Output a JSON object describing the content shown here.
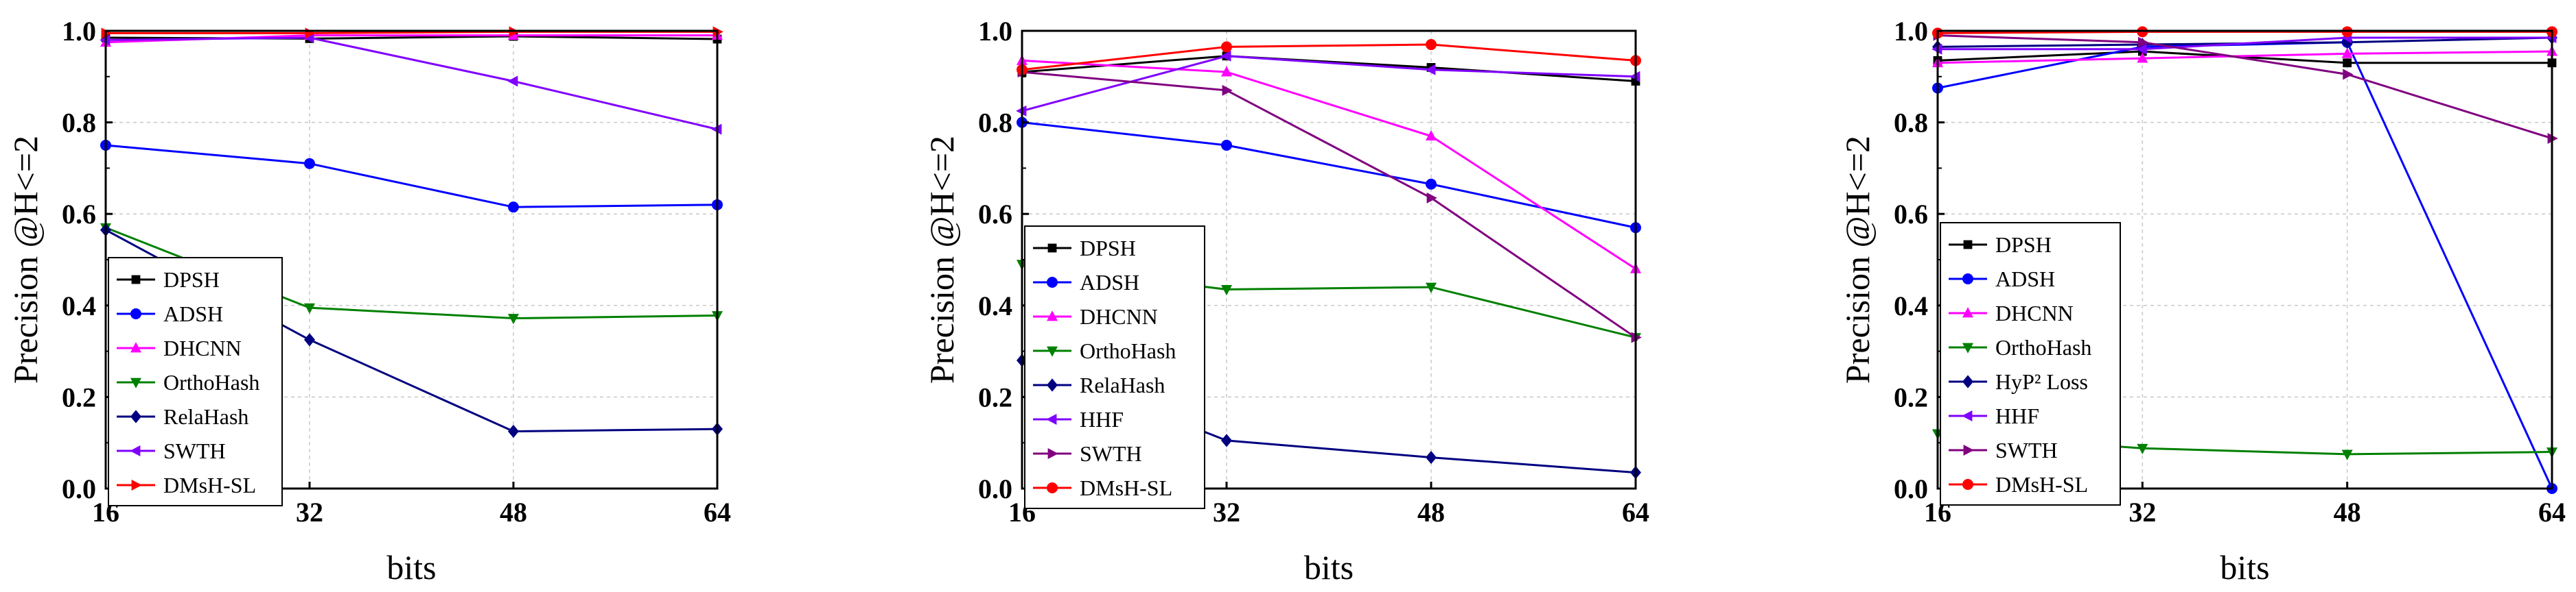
{
  "chart_data": [
    {
      "type": "line",
      "title": "",
      "xlabel": "bits",
      "ylabel": "Precision @H<=2",
      "x": [
        16,
        32,
        48,
        64
      ],
      "xticks": [
        "16",
        "32",
        "48",
        "64"
      ],
      "yticks": [
        "0.0",
        "0.2",
        "0.4",
        "0.6",
        "0.8",
        "1.0"
      ],
      "xlim": [
        16,
        64
      ],
      "ylim": [
        0,
        1
      ],
      "grid": true,
      "legend": "bottom-left",
      "series": [
        {
          "name": "DPSH",
          "color": "#000000",
          "marker": "square",
          "values": [
            0.985,
            0.983,
            0.988,
            0.982
          ]
        },
        {
          "name": "ADSH",
          "color": "#0000ff",
          "marker": "circle",
          "values": [
            0.75,
            0.71,
            0.615,
            0.62
          ]
        },
        {
          "name": "DHCNN",
          "color": "#ff00ff",
          "marker": "triangle-up",
          "values": [
            0.975,
            0.99,
            0.99,
            0.99
          ]
        },
        {
          "name": "OrthoHash",
          "color": "#008000",
          "marker": "triangle-down",
          "values": [
            0.57,
            0.395,
            0.372,
            0.378
          ]
        },
        {
          "name": "RelaHash",
          "color": "#000080",
          "marker": "diamond",
          "values": [
            0.565,
            0.325,
            0.125,
            0.13
          ]
        },
        {
          "name": "SWTH",
          "color": "#8000ff",
          "marker": "triangle-left",
          "values": [
            0.98,
            0.985,
            0.89,
            0.785
          ]
        },
        {
          "name": "DMsH-SL",
          "color": "#ff0000",
          "marker": "triangle-right",
          "values": [
            0.995,
            0.995,
            0.998,
            0.998
          ]
        }
      ]
    },
    {
      "type": "line",
      "title": "",
      "xlabel": "bits",
      "ylabel": "Precision @H<=2",
      "x": [
        16,
        32,
        48,
        64
      ],
      "xticks": [
        "16",
        "32",
        "48",
        "64"
      ],
      "yticks": [
        "0.0",
        "0.2",
        "0.4",
        "0.6",
        "0.8",
        "1.0"
      ],
      "xlim": [
        16,
        64
      ],
      "ylim": [
        0,
        1
      ],
      "grid": true,
      "legend": "bottom-left",
      "series": [
        {
          "name": "DPSH",
          "color": "#000000",
          "marker": "square",
          "values": [
            0.91,
            0.945,
            0.92,
            0.89
          ]
        },
        {
          "name": "ADSH",
          "color": "#0000ff",
          "marker": "circle",
          "values": [
            0.8,
            0.75,
            0.665,
            0.57
          ]
        },
        {
          "name": "DHCNN",
          "color": "#ff00ff",
          "marker": "triangle-up",
          "values": [
            0.935,
            0.91,
            0.77,
            0.48
          ]
        },
        {
          "name": "OrthoHash",
          "color": "#008000",
          "marker": "triangle-down",
          "values": [
            0.49,
            0.435,
            0.44,
            0.33
          ]
        },
        {
          "name": "RelaHash",
          "color": "#000080",
          "marker": "diamond",
          "values": [
            0.28,
            0.105,
            0.068,
            0.035
          ]
        },
        {
          "name": "HHF",
          "color": "#8000ff",
          "marker": "triangle-left",
          "values": [
            0.825,
            0.945,
            0.915,
            0.9
          ]
        },
        {
          "name": "SWTH",
          "color": "#800080",
          "marker": "triangle-right",
          "values": [
            0.91,
            0.87,
            0.635,
            0.33
          ]
        },
        {
          "name": "DMsH-SL",
          "color": "#ff0000",
          "marker": "circle",
          "values": [
            0.915,
            0.965,
            0.97,
            0.935
          ]
        }
      ]
    },
    {
      "type": "line",
      "title": "",
      "xlabel": "bits",
      "ylabel": "Precision @H<=2",
      "x": [
        16,
        32,
        48,
        64
      ],
      "xticks": [
        "16",
        "32",
        "48",
        "64"
      ],
      "yticks": [
        "0.0",
        "0.2",
        "0.4",
        "0.6",
        "0.8",
        "1.0"
      ],
      "xlim": [
        16,
        64
      ],
      "ylim": [
        0,
        1
      ],
      "grid": true,
      "legend": "bottom-left",
      "series": [
        {
          "name": "DPSH",
          "color": "#000000",
          "marker": "square",
          "values": [
            0.935,
            0.955,
            0.93,
            0.93
          ]
        },
        {
          "name": "ADSH",
          "color": "#0000ff",
          "marker": "circle",
          "values": [
            0.875,
            0.965,
            0.975,
            0.0
          ]
        },
        {
          "name": "DHCNN",
          "color": "#ff00ff",
          "marker": "triangle-up",
          "values": [
            0.93,
            0.94,
            0.95,
            0.955
          ]
        },
        {
          "name": "OrthoHash",
          "color": "#008000",
          "marker": "triangle-down",
          "values": [
            0.12,
            0.088,
            0.075,
            0.08
          ]
        },
        {
          "name": "HyP² Loss",
          "color": "#000080",
          "marker": "diamond",
          "values": [
            0.965,
            0.97,
            0.975,
            0.985
          ]
        },
        {
          "name": "HHF",
          "color": "#8000ff",
          "marker": "triangle-left",
          "values": [
            0.96,
            0.96,
            0.985,
            0.985
          ]
        },
        {
          "name": "SWTH",
          "color": "#800080",
          "marker": "triangle-right",
          "values": [
            0.99,
            0.975,
            0.905,
            0.765
          ]
        },
        {
          "name": "DMsH-SL",
          "color": "#ff0000",
          "marker": "circle",
          "values": [
            0.995,
            0.998,
            0.998,
            0.998
          ]
        }
      ]
    }
  ]
}
